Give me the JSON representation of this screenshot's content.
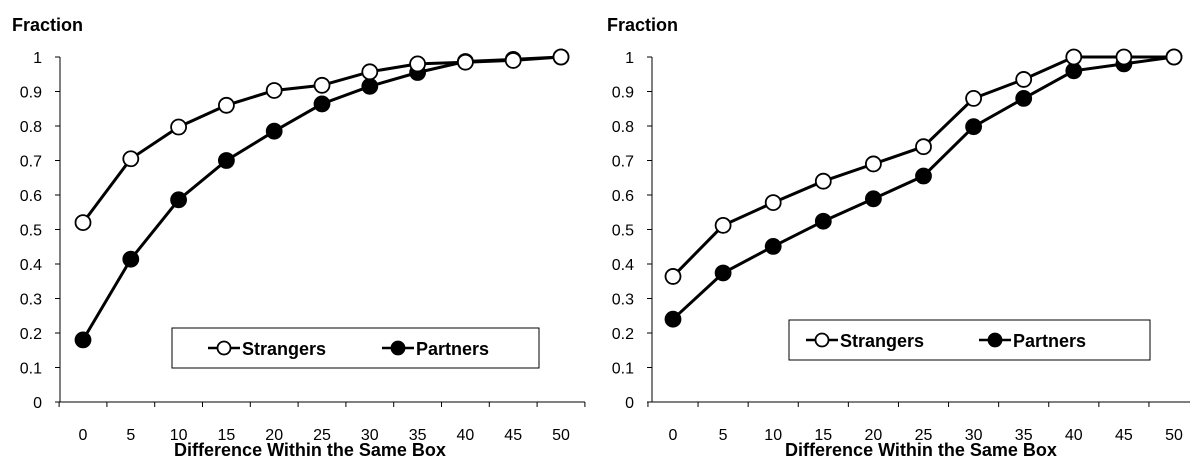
{
  "chart_data": [
    {
      "type": "line",
      "ylabel": "Fraction",
      "xlabel": "Difference Within the Same Box",
      "x": [
        0,
        5,
        10,
        15,
        20,
        25,
        30,
        35,
        40,
        45,
        50
      ],
      "ylim": [
        0,
        1
      ],
      "yticks": [
        "0",
        "0.1",
        "0.2",
        "0.3",
        "0.4",
        "0.5",
        "0.6",
        "0.7",
        "0.8",
        "0.9",
        "1"
      ],
      "xticks": [
        "0",
        "5",
        "10",
        "15",
        "20",
        "25",
        "30",
        "35",
        "40",
        "45",
        "50"
      ],
      "legend_position": "bottom-right",
      "series": [
        {
          "name": "Strangers",
          "marker": "open-circle",
          "values": [
            0.52,
            0.705,
            0.797,
            0.86,
            0.903,
            0.918,
            0.957,
            0.98,
            0.985,
            0.99,
            1.0
          ]
        },
        {
          "name": "Partners",
          "marker": "filled-circle",
          "values": [
            0.18,
            0.414,
            0.586,
            0.7,
            0.785,
            0.864,
            0.915,
            0.955,
            0.987,
            0.993,
            1.0
          ]
        }
      ]
    },
    {
      "type": "line",
      "ylabel": "Fraction",
      "xlabel": "Difference Within the Same Box",
      "x": [
        0,
        5,
        10,
        15,
        20,
        25,
        30,
        35,
        40,
        45,
        50
      ],
      "ylim": [
        0,
        1
      ],
      "yticks": [
        "0",
        "0.1",
        "0.2",
        "0.3",
        "0.4",
        "0.5",
        "0.6",
        "0.7",
        "0.8",
        "0.9",
        "1"
      ],
      "xticks": [
        "0",
        "5",
        "10",
        "15",
        "20",
        "25",
        "30",
        "35",
        "40",
        "45",
        "50"
      ],
      "legend_position": "bottom-right",
      "series": [
        {
          "name": "Strangers",
          "marker": "open-circle",
          "values": [
            0.364,
            0.512,
            0.578,
            0.64,
            0.69,
            0.74,
            0.88,
            0.935,
            1.0,
            1.0,
            1.0
          ]
        },
        {
          "name": "Partners",
          "marker": "filled-circle",
          "values": [
            0.24,
            0.374,
            0.451,
            0.524,
            0.589,
            0.655,
            0.798,
            0.88,
            0.96,
            0.98,
            1.0
          ]
        }
      ]
    }
  ]
}
